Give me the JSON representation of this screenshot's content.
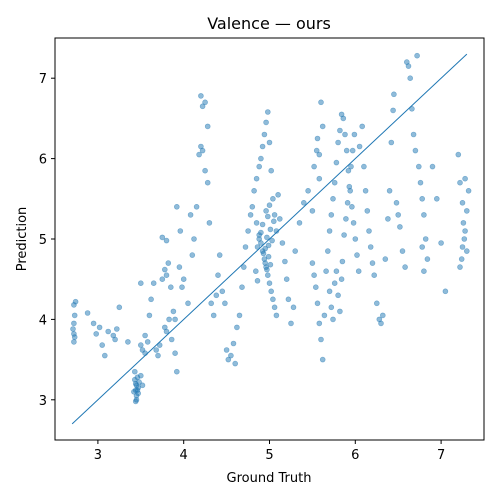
{
  "chart_data": {
    "type": "scatter",
    "title": "Valence — ours",
    "xlabel": "Ground Truth",
    "ylabel": "Prediction",
    "xlim": [
      2.5,
      7.5
    ],
    "ylim": [
      2.5,
      7.5
    ],
    "xticks": [
      3,
      4,
      5,
      6,
      7
    ],
    "yticks": [
      3,
      4,
      5,
      6,
      7
    ],
    "grid": false,
    "point_color": "#1f77b4",
    "line_color": "#1f77b4",
    "reference_line": {
      "x": [
        2.7,
        7.3
      ],
      "y": [
        2.7,
        7.3
      ]
    },
    "series": [
      {
        "values": [
          [
            2.72,
            4.18
          ],
          [
            2.73,
            4.05
          ],
          [
            2.72,
            3.95
          ],
          [
            2.71,
            3.88
          ],
          [
            2.73,
            3.78
          ],
          [
            2.72,
            3.72
          ],
          [
            2.74,
            4.22
          ],
          [
            2.72,
            3.82
          ],
          [
            2.88,
            4.08
          ],
          [
            2.95,
            3.95
          ],
          [
            2.98,
            3.82
          ],
          [
            3.02,
            3.9
          ],
          [
            3.05,
            3.68
          ],
          [
            3.08,
            3.55
          ],
          [
            3.12,
            3.85
          ],
          [
            3.18,
            3.8
          ],
          [
            3.2,
            3.75
          ],
          [
            3.22,
            3.88
          ],
          [
            3.25,
            4.15
          ],
          [
            3.35,
            3.72
          ],
          [
            3.42,
            3.1
          ],
          [
            3.43,
            3.25
          ],
          [
            3.44,
            3.2
          ],
          [
            3.45,
            3.18
          ],
          [
            3.45,
            3.05
          ],
          [
            3.46,
            3.28
          ],
          [
            3.47,
            3.15
          ],
          [
            3.44,
            2.98
          ],
          [
            3.46,
            3.12
          ],
          [
            3.48,
            3.22
          ],
          [
            3.5,
            3.3
          ],
          [
            3.52,
            3.18
          ],
          [
            3.43,
            3.35
          ],
          [
            3.45,
            3.0
          ],
          [
            3.47,
            3.08
          ],
          [
            3.44,
            3.12
          ],
          [
            3.5,
            3.68
          ],
          [
            3.52,
            3.62
          ],
          [
            3.55,
            3.58
          ],
          [
            3.58,
            3.72
          ],
          [
            3.6,
            4.05
          ],
          [
            3.62,
            4.25
          ],
          [
            3.65,
            4.45
          ],
          [
            3.5,
            4.45
          ],
          [
            3.55,
            3.8
          ],
          [
            3.68,
            3.62
          ],
          [
            3.7,
            3.55
          ],
          [
            3.72,
            3.68
          ],
          [
            3.75,
            4.5
          ],
          [
            3.78,
            4.62
          ],
          [
            3.8,
            4.55
          ],
          [
            3.82,
            4.7
          ],
          [
            3.85,
            4.4
          ],
          [
            3.78,
            3.9
          ],
          [
            3.8,
            3.85
          ],
          [
            3.83,
            4.0
          ],
          [
            3.86,
            3.75
          ],
          [
            3.9,
            3.58
          ],
          [
            3.92,
            3.35
          ],
          [
            3.75,
            5.02
          ],
          [
            3.8,
            4.98
          ],
          [
            3.88,
            4.1
          ],
          [
            3.9,
            4.0
          ],
          [
            3.95,
            4.65
          ],
          [
            3.98,
            4.4
          ],
          [
            4.0,
            4.5
          ],
          [
            3.92,
            5.4
          ],
          [
            3.96,
            5.1
          ],
          [
            4.05,
            4.2
          ],
          [
            4.08,
            5.3
          ],
          [
            4.1,
            4.8
          ],
          [
            4.12,
            5.0
          ],
          [
            4.15,
            5.4
          ],
          [
            4.18,
            6.05
          ],
          [
            4.2,
            6.15
          ],
          [
            4.22,
            6.1
          ],
          [
            4.2,
            6.78
          ],
          [
            4.22,
            6.65
          ],
          [
            4.25,
            6.7
          ],
          [
            4.28,
            6.4
          ],
          [
            4.25,
            5.85
          ],
          [
            4.28,
            5.7
          ],
          [
            4.3,
            5.2
          ],
          [
            4.32,
            4.2
          ],
          [
            4.35,
            4.05
          ],
          [
            4.38,
            4.3
          ],
          [
            4.4,
            4.55
          ],
          [
            4.42,
            4.8
          ],
          [
            4.45,
            4.35
          ],
          [
            4.48,
            4.2
          ],
          [
            4.5,
            3.62
          ],
          [
            4.52,
            3.5
          ],
          [
            4.55,
            3.55
          ],
          [
            4.58,
            3.7
          ],
          [
            4.6,
            3.45
          ],
          [
            4.62,
            3.9
          ],
          [
            4.65,
            4.05
          ],
          [
            4.68,
            4.4
          ],
          [
            4.7,
            4.65
          ],
          [
            4.72,
            4.9
          ],
          [
            4.75,
            5.1
          ],
          [
            4.78,
            5.3
          ],
          [
            4.8,
            5.4
          ],
          [
            4.82,
            5.6
          ],
          [
            4.85,
            5.75
          ],
          [
            4.88,
            5.9
          ],
          [
            4.9,
            6.0
          ],
          [
            4.92,
            6.15
          ],
          [
            4.94,
            6.3
          ],
          [
            4.96,
            6.45
          ],
          [
            4.98,
            6.58
          ],
          [
            5.0,
            6.2
          ],
          [
            5.02,
            5.85
          ],
          [
            5.04,
            5.5
          ],
          [
            5.06,
            5.3
          ],
          [
            5.08,
            5.1
          ],
          [
            4.85,
            5.2
          ],
          [
            4.88,
            5.05
          ],
          [
            4.9,
            4.95
          ],
          [
            4.92,
            4.85
          ],
          [
            4.94,
            4.75
          ],
          [
            4.96,
            4.65
          ],
          [
            4.98,
            4.55
          ],
          [
            5.0,
            4.45
          ],
          [
            5.02,
            4.35
          ],
          [
            5.04,
            4.25
          ],
          [
            5.06,
            4.15
          ],
          [
            5.08,
            4.05
          ],
          [
            4.86,
            4.9
          ],
          [
            4.88,
            5.0
          ],
          [
            4.9,
            5.08
          ],
          [
            4.92,
            5.18
          ],
          [
            4.95,
            4.88
          ],
          [
            4.97,
            5.02
          ],
          [
            4.99,
            4.92
          ],
          [
            5.01,
            5.12
          ],
          [
            5.03,
            4.98
          ],
          [
            5.05,
            5.22
          ],
          [
            4.93,
            4.82
          ],
          [
            4.95,
            4.7
          ],
          [
            4.97,
            4.62
          ],
          [
            4.99,
            4.78
          ],
          [
            5.01,
            4.68
          ],
          [
            4.96,
            5.35
          ],
          [
            4.98,
            5.28
          ],
          [
            5.0,
            5.42
          ],
          [
            4.84,
            4.6
          ],
          [
            4.86,
            4.48
          ],
          [
            5.1,
            5.55
          ],
          [
            5.12,
            5.25
          ],
          [
            5.15,
            4.95
          ],
          [
            5.18,
            4.72
          ],
          [
            5.2,
            4.5
          ],
          [
            5.22,
            4.25
          ],
          [
            5.25,
            3.95
          ],
          [
            5.28,
            4.15
          ],
          [
            5.3,
            4.85
          ],
          [
            5.35,
            5.2
          ],
          [
            5.4,
            5.45
          ],
          [
            5.45,
            5.6
          ],
          [
            5.5,
            5.35
          ],
          [
            5.52,
            5.9
          ],
          [
            5.55,
            6.1
          ],
          [
            5.56,
            6.25
          ],
          [
            5.58,
            6.05
          ],
          [
            5.6,
            6.7
          ],
          [
            5.62,
            6.4
          ],
          [
            5.58,
            5.75
          ],
          [
            5.5,
            4.7
          ],
          [
            5.52,
            4.55
          ],
          [
            5.54,
            4.4
          ],
          [
            5.56,
            4.2
          ],
          [
            5.58,
            3.95
          ],
          [
            5.6,
            3.75
          ],
          [
            5.62,
            3.5
          ],
          [
            5.64,
            4.05
          ],
          [
            5.66,
            4.6
          ],
          [
            5.68,
            4.85
          ],
          [
            5.7,
            5.1
          ],
          [
            5.72,
            5.3
          ],
          [
            5.74,
            5.5
          ],
          [
            5.76,
            5.7
          ],
          [
            5.78,
            5.95
          ],
          [
            5.8,
            6.2
          ],
          [
            5.82,
            6.35
          ],
          [
            5.84,
            6.55
          ],
          [
            5.86,
            6.5
          ],
          [
            5.88,
            6.3
          ],
          [
            5.9,
            6.1
          ],
          [
            5.92,
            5.85
          ],
          [
            5.94,
            5.6
          ],
          [
            5.96,
            5.4
          ],
          [
            5.98,
            5.2
          ],
          [
            6.0,
            5.0
          ],
          [
            6.02,
            4.8
          ],
          [
            6.04,
            4.6
          ],
          [
            5.7,
            4.35
          ],
          [
            5.72,
            4.15
          ],
          [
            5.74,
            4.0
          ],
          [
            5.76,
            4.45
          ],
          [
            5.78,
            4.6
          ],
          [
            5.8,
            4.3
          ],
          [
            5.82,
            4.1
          ],
          [
            5.84,
            4.5
          ],
          [
            5.85,
            4.72
          ],
          [
            5.87,
            5.05
          ],
          [
            5.89,
            5.25
          ],
          [
            5.91,
            5.45
          ],
          [
            5.93,
            5.65
          ],
          [
            5.95,
            5.9
          ],
          [
            5.97,
            6.1
          ],
          [
            5.99,
            6.3
          ],
          [
            6.05,
            6.15
          ],
          [
            6.08,
            6.4
          ],
          [
            6.1,
            5.9
          ],
          [
            6.12,
            5.6
          ],
          [
            6.14,
            5.35
          ],
          [
            6.16,
            5.1
          ],
          [
            6.18,
            4.9
          ],
          [
            6.2,
            4.7
          ],
          [
            6.22,
            4.55
          ],
          [
            6.25,
            4.2
          ],
          [
            6.28,
            4.0
          ],
          [
            6.3,
            3.95
          ],
          [
            6.32,
            4.05
          ],
          [
            6.35,
            4.75
          ],
          [
            6.38,
            5.25
          ],
          [
            6.4,
            5.6
          ],
          [
            6.42,
            6.2
          ],
          [
            6.44,
            6.6
          ],
          [
            6.45,
            6.8
          ],
          [
            6.48,
            5.45
          ],
          [
            6.5,
            5.3
          ],
          [
            6.52,
            5.15
          ],
          [
            6.55,
            4.85
          ],
          [
            6.58,
            4.65
          ],
          [
            6.6,
            7.2
          ],
          [
            6.62,
            7.15
          ],
          [
            6.64,
            7.0
          ],
          [
            6.66,
            6.62
          ],
          [
            6.68,
            6.3
          ],
          [
            6.7,
            6.1
          ],
          [
            6.72,
            7.28
          ],
          [
            6.74,
            5.9
          ],
          [
            6.76,
            5.7
          ],
          [
            6.78,
            5.5
          ],
          [
            6.8,
            5.3
          ],
          [
            6.82,
            5.0
          ],
          [
            6.84,
            4.75
          ],
          [
            6.8,
            4.6
          ],
          [
            6.78,
            4.9
          ],
          [
            6.9,
            5.9
          ],
          [
            6.95,
            5.5
          ],
          [
            7.0,
            4.95
          ],
          [
            7.05,
            4.35
          ],
          [
            7.2,
            6.05
          ],
          [
            7.22,
            5.7
          ],
          [
            7.25,
            5.45
          ],
          [
            7.26,
            5.2
          ],
          [
            7.28,
            5.1
          ],
          [
            7.3,
            4.85
          ],
          [
            7.22,
            4.65
          ],
          [
            7.25,
            4.9
          ],
          [
            7.28,
            5.75
          ],
          [
            7.3,
            5.35
          ],
          [
            7.32,
            5.6
          ],
          [
            7.27,
            5.0
          ],
          [
            7.24,
            4.75
          ]
        ]
      }
    ]
  }
}
